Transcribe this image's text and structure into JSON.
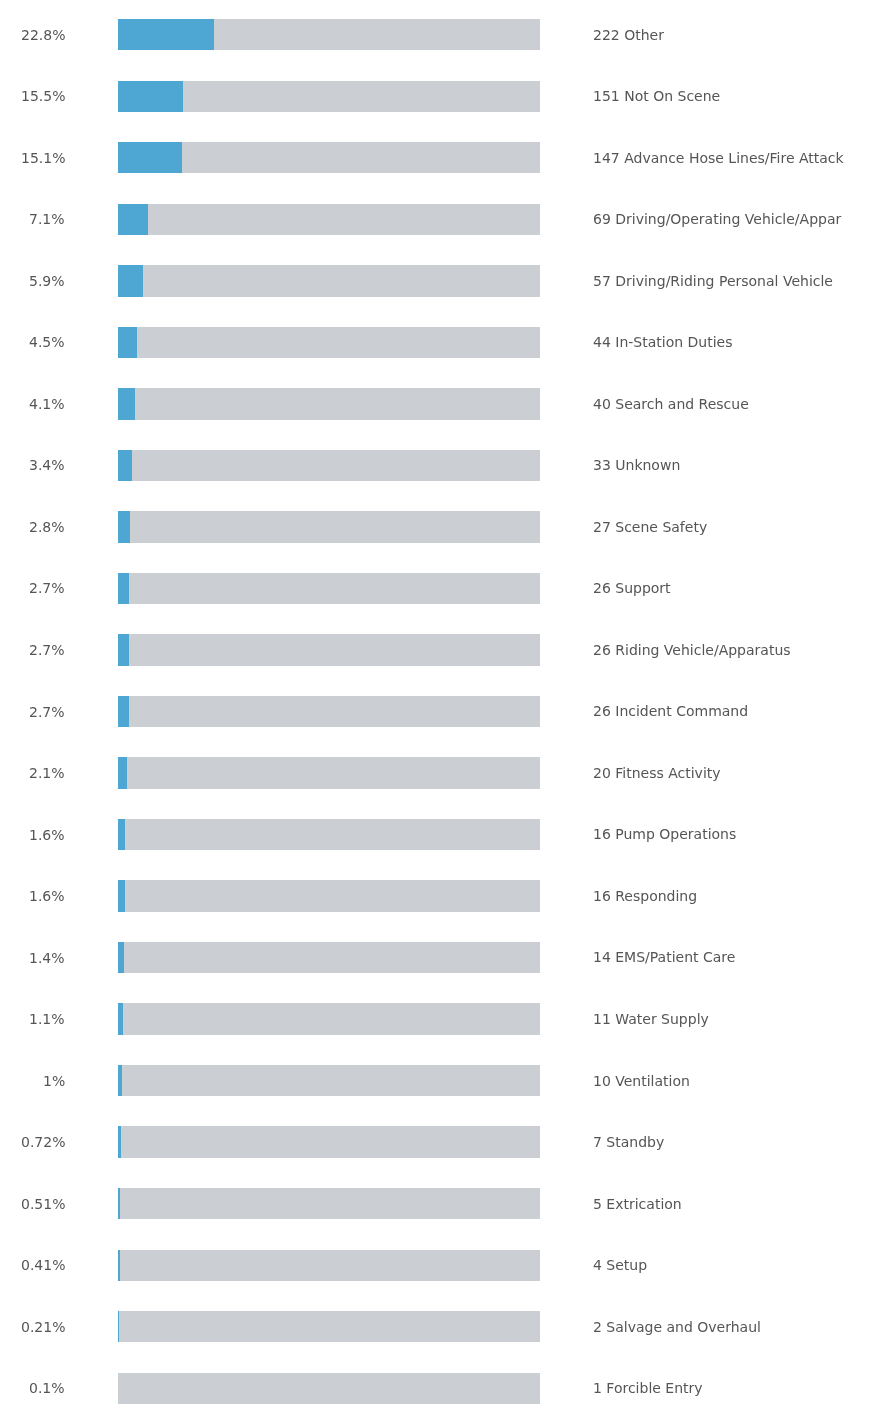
{
  "chart_data": {
    "type": "bar",
    "orientation": "horizontal",
    "stacked": true,
    "xlim": [
      0,
      100
    ],
    "tick_labels": "y",
    "grid": false,
    "categories": [
      "222 Other",
      "151 Not On Scene",
      "147 Advance Hose Lines/Fire Attack",
      "69 Driving/Operating Vehicle/Appar",
      "57 Driving/Riding Personal Vehicle",
      "44 In-Station Duties",
      "40 Search and Rescue",
      "33 Unknown",
      "27 Scene Safety",
      "26 Support",
      "26 Riding Vehicle/Apparatus",
      "26 Incident Command",
      "20 Fitness Activity",
      "16 Pump Operations",
      "16 Responding",
      "14 EMS/Patient Care",
      "11 Water Supply",
      "10 Ventilation",
      "7 Standby",
      "5 Extrication",
      "4 Setup",
      "2 Salvage and Overhaul",
      "1 Forcible Entry"
    ],
    "series": [
      {
        "color": "#4ea6d3",
        "values": [
          22.8,
          15.5,
          15.1,
          7.1,
          5.9,
          4.5,
          4.1,
          3.4,
          2.8,
          2.7,
          2.7,
          2.7,
          2.1,
          1.6,
          1.6,
          1.4,
          1.1,
          1,
          0.72,
          0.51,
          0.41,
          0.21,
          0.1
        ],
        "value_labels": [
          "22.8%",
          "15.5%",
          "15.1%",
          "7.1%",
          "5.9%",
          "4.5%",
          "4.1%",
          "3.4%",
          "2.8%",
          "2.7%",
          "2.7%",
          "2.7%",
          "2.1%",
          "1.6%",
          "1.6%",
          "1.4%",
          "1.1%",
          "1%",
          "0.72%",
          "0.51%",
          "0.41%",
          "0.21%",
          "0.1%"
        ]
      },
      {
        "color": "#cbced3",
        "values": [
          77.2,
          84.5,
          84.9,
          92.9,
          94.1,
          95.5,
          95.9,
          96.6,
          97.2,
          97.3,
          97.3,
          97.3,
          97.9,
          98.4,
          98.4,
          98.6,
          98.9,
          99,
          99.28,
          99.49,
          99.59,
          99.79,
          99.9
        ]
      }
    ]
  }
}
